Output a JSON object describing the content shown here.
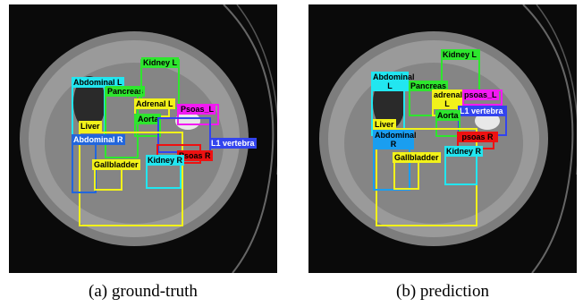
{
  "panels": [
    {
      "caption": "(a) ground-truth",
      "labels": [
        "Abdominal L",
        "Pancreas",
        "Kidney L",
        "Adrenal L",
        "Aorta",
        "Psoas_L",
        "L1 vertebra",
        "Liver",
        "Abdominal R",
        "Psoas R",
        "Kidney R",
        "Gallbladder"
      ]
    },
    {
      "caption": "(b) prediction",
      "labels": [
        "Abdominal L",
        "Kidney L",
        "Pancreas",
        "adrenal L",
        "psoas_L",
        "L1 vertebra",
        "Aorta",
        "Liver",
        "Abdominal R",
        "psoas R",
        "Kidney R",
        "Gallbladder"
      ]
    }
  ]
}
